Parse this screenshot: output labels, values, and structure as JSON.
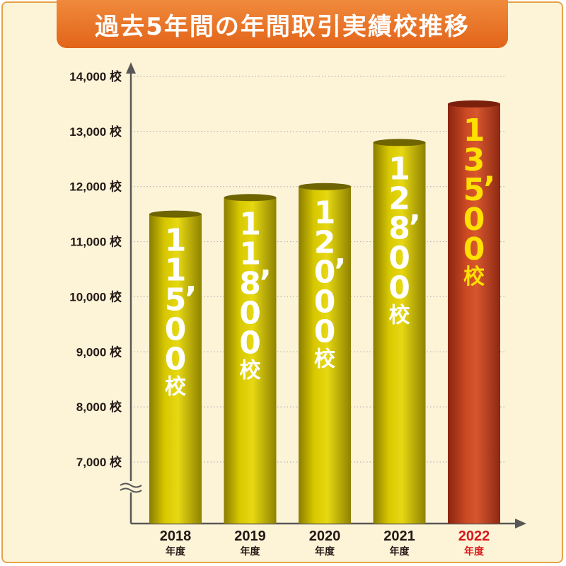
{
  "chart_data": {
    "type": "bar",
    "title": "過去5年間の年間取引実績校推移",
    "categories": [
      "2018",
      "2019",
      "2020",
      "2021",
      "2022"
    ],
    "category_unit": "年度",
    "values": [
      11500,
      11800,
      12000,
      12800,
      13500
    ],
    "value_labels": [
      "11,500",
      "11,800",
      "12,000",
      "12,800",
      "13,500"
    ],
    "value_unit": "校",
    "yticks": [
      "7,000",
      "8,000",
      "9,000",
      "10,000",
      "11,000",
      "12,000",
      "13,000",
      "14,000"
    ],
    "ytick_values": [
      7000,
      8000,
      9000,
      10000,
      11000,
      12000,
      13000,
      14000
    ],
    "ytick_unit": "校",
    "ylim": [
      6500,
      14000
    ],
    "axis_break": true,
    "grid": true,
    "highlight_index": 4,
    "colors": {
      "bar": "#c9b800",
      "bar_highlight": "#c0421f",
      "bar_text": "#ffffff",
      "bar_text_highlight": "#ffe000",
      "category_text": "#231815",
      "category_text_highlight": "#d7191c"
    }
  }
}
